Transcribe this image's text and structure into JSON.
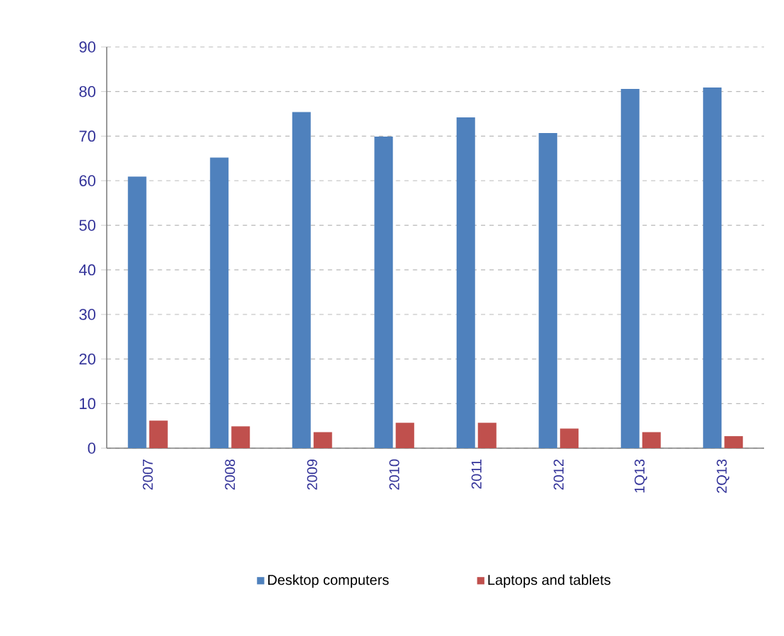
{
  "chart_data": {
    "type": "bar",
    "categories": [
      "2007",
      "2008",
      "2009",
      "2010",
      "2011",
      "2012",
      "1Q13",
      "2Q13"
    ],
    "series": [
      {
        "name": "Desktop computers",
        "color": "#4f81bd",
        "values": [
          60.9,
          65.2,
          75.4,
          69.9,
          74.2,
          70.7,
          80.6,
          80.9
        ]
      },
      {
        "name": "Laptops and tablets",
        "color": "#c0504d",
        "values": [
          6.2,
          4.9,
          3.6,
          5.7,
          5.7,
          4.4,
          3.6,
          2.7
        ]
      }
    ],
    "ylim": [
      0,
      90
    ],
    "yticks": [
      0,
      10,
      20,
      30,
      40,
      50,
      60,
      70,
      80,
      90
    ],
    "grid": "y",
    "legend": "bottom"
  }
}
